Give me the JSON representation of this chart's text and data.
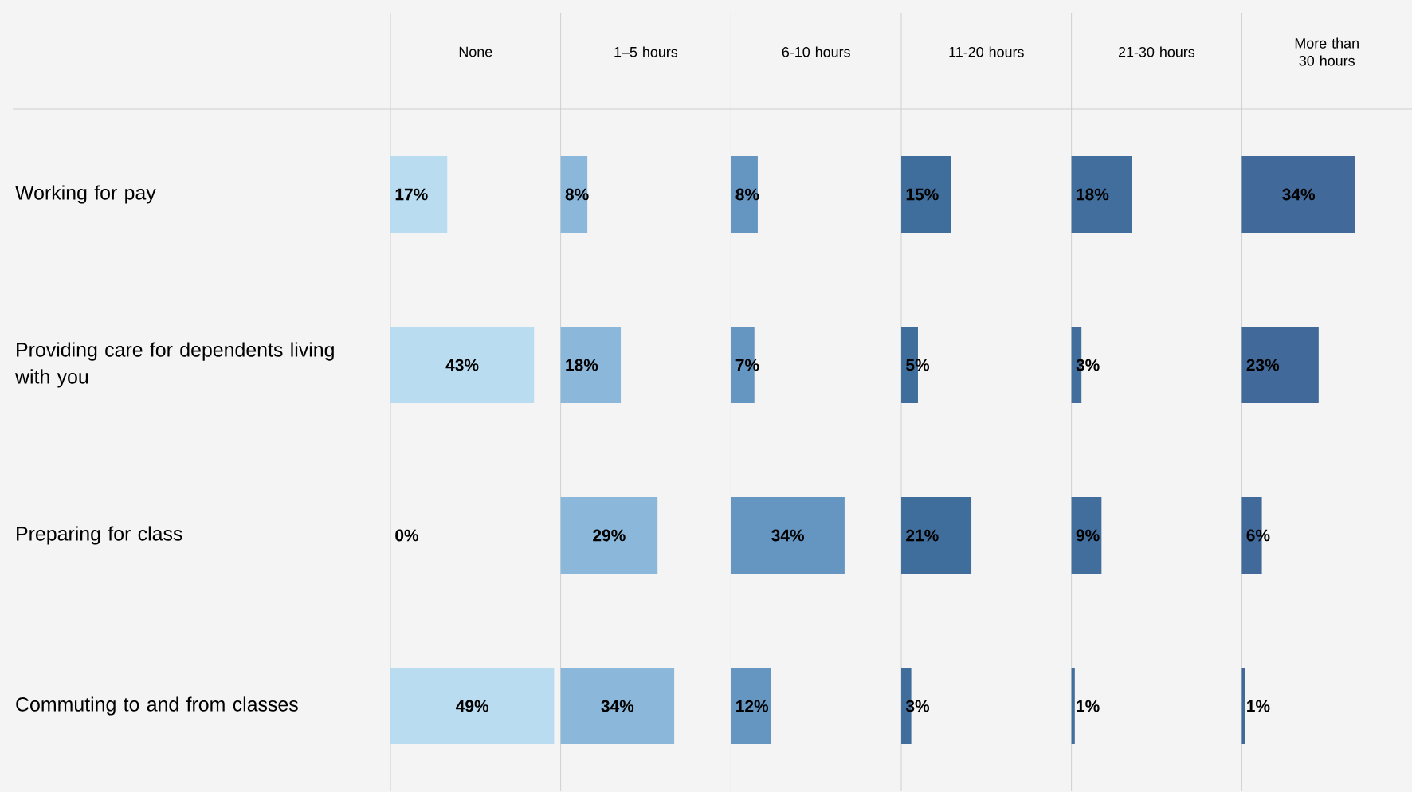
{
  "chart_data": [
    {
      "type": "bar",
      "orientation": "horizontal",
      "title": "None",
      "categories": [
        "Working for pay",
        "Providing care for dependents living with you",
        "Preparing for class",
        "Commuting to and from classes"
      ],
      "values": [
        17,
        43,
        0,
        49
      ],
      "value_labels": [
        "17%",
        "43%",
        "0%",
        "49%"
      ],
      "color": "#b9dcf0",
      "tick_labels": "y"
    },
    {
      "type": "bar",
      "orientation": "horizontal",
      "title": "1–5 hours",
      "categories": [
        null,
        null,
        null,
        null
      ],
      "values": [
        8,
        18,
        29,
        34
      ],
      "value_labels": [
        "8%",
        "18%",
        "29%",
        "34%"
      ],
      "color": "#8bb8da",
      "tick_labels": false
    },
    {
      "type": "bar",
      "orientation": "horizontal",
      "title": "6-10 hours",
      "categories": [
        null,
        null,
        null,
        null
      ],
      "values": [
        8,
        7,
        34,
        12
      ],
      "value_labels": [
        "8%",
        "7%",
        "34%",
        "12%"
      ],
      "color": "#6596c2",
      "tick_labels": false
    },
    {
      "type": "bar",
      "orientation": "horizontal",
      "title": "11-20 hours",
      "categories": [
        null,
        null,
        null,
        null
      ],
      "values": [
        15,
        5,
        21,
        3
      ],
      "value_labels": [
        "15%",
        "5%",
        "21%",
        "3%"
      ],
      "color": "#3f6d9c",
      "tick_labels": false
    },
    {
      "type": "bar",
      "orientation": "horizontal",
      "title": "21-30 hours",
      "categories": [
        null,
        null,
        null,
        null
      ],
      "values": [
        18,
        3,
        9,
        1
      ],
      "value_labels": [
        "18%",
        "3%",
        "9%",
        "1%"
      ],
      "color": "#426e9d",
      "tick_labels": false
    },
    {
      "type": "bar",
      "orientation": "horizontal",
      "title": "More than 30 hours",
      "categories": [
        null,
        null,
        null,
        null
      ],
      "values": [
        34,
        23,
        6,
        1
      ],
      "value_labels": [
        "34%",
        "23%",
        "6%",
        "1%"
      ],
      "color": "#41699a",
      "tick_labels": false
    }
  ]
}
